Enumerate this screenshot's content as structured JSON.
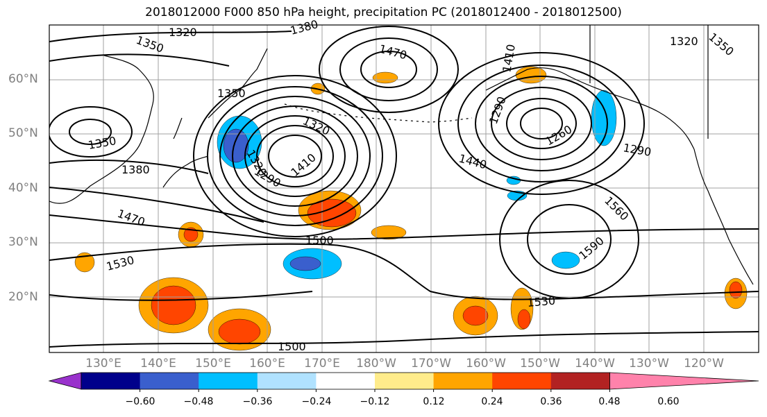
{
  "title": "2018012000 F000 850 hPa height, precipitation PC (2018012400 - 2018012500)",
  "latitude_labels": [
    "60°N",
    "50°N",
    "40°N",
    "30°N",
    "20°N"
  ],
  "longitude_labels": [
    "130°E",
    "140°E",
    "150°E",
    "160°E",
    "170°E",
    "180°W",
    "170°W",
    "160°W",
    "150°W",
    "140°W",
    "130°W",
    "120°W"
  ],
  "contour_labels": [
    "1320",
    "1350",
    "1380",
    "1470",
    "1350",
    "1320",
    "1350",
    "1320",
    "1380",
    "1350",
    "1320",
    "1290",
    "1290",
    "1410",
    "1260",
    "1290",
    "1410",
    "1440",
    "1470",
    "1500",
    "1560",
    "1590",
    "1530",
    "1530",
    "1500"
  ],
  "colorbar": {
    "tick_labels": [
      "−0.60",
      "−0.48",
      "−0.36",
      "−0.24",
      "−0.12",
      "0.12",
      "0.24",
      "0.36",
      "0.48",
      "0.60"
    ],
    "colors": [
      "#9932cc",
      "#00008b",
      "#3a5fcd",
      "#00bfff",
      "#b0e2ff",
      "#ffffff",
      "#ffec8b",
      "#ffa500",
      "#ff4500",
      "#b22222",
      "#ff82ab"
    ]
  },
  "chart_data": {
    "type": "heatmap",
    "title": "2018012000 F000 850 hPa height, precipitation PC (2018012400 - 2018012500)",
    "field": "850 hPa geopotential height contours (m) over precipitation PC shading",
    "lat_ticks": [
      60,
      50,
      40,
      30,
      20
    ],
    "lon_ticks": [
      "130E",
      "140E",
      "150E",
      "160E",
      "170E",
      "180W",
      "170W",
      "160W",
      "150W",
      "140W",
      "130W",
      "120W"
    ],
    "contour_levels_labeled": [
      1260,
      1290,
      1320,
      1350,
      1380,
      1410,
      1440,
      1470,
      1500,
      1530,
      1560,
      1590
    ],
    "colorbar_bounds": [
      -0.6,
      -0.48,
      -0.36,
      -0.24,
      -0.12,
      0.12,
      0.24,
      0.36,
      0.48,
      0.6
    ],
    "features": [
      {
        "kind": "low",
        "approx_lat": 45,
        "approx_lon": "168E"
      },
      {
        "kind": "low",
        "approx_lat": 52,
        "approx_lon": "150W"
      },
      {
        "kind": "high",
        "approx_lat": 33,
        "approx_lon": "145W"
      }
    ]
  }
}
